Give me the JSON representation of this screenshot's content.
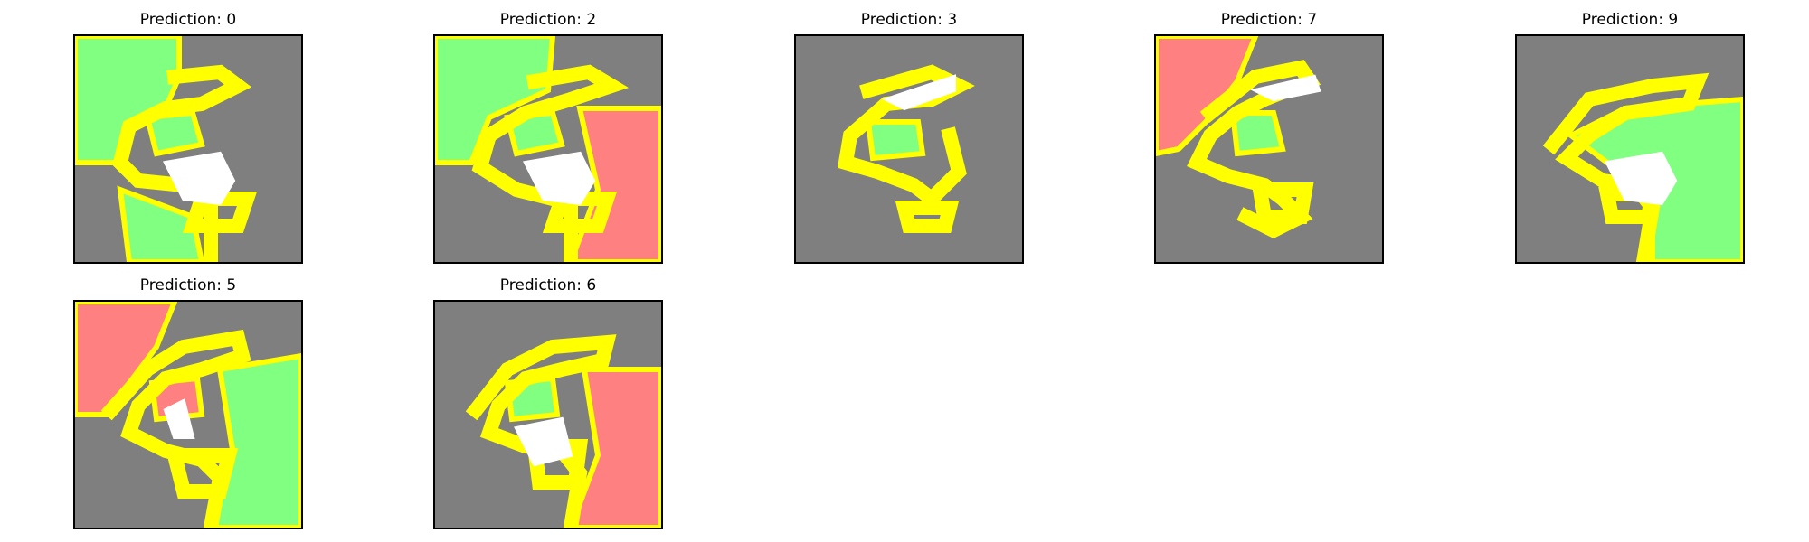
{
  "panels": [
    {
      "title": "Prediction: 0",
      "variant": "p0"
    },
    {
      "title": "Prediction: 2",
      "variant": "p2"
    },
    {
      "title": "Prediction: 3",
      "variant": "p3"
    },
    {
      "title": "Prediction: 7",
      "variant": "p7"
    },
    {
      "title": "Prediction: 9",
      "variant": "p9"
    },
    {
      "title": "Prediction: 5",
      "variant": "p5"
    },
    {
      "title": "Prediction: 6",
      "variant": "p6"
    }
  ],
  "colors": {
    "background": "#7f7f7f",
    "positive": "#80ff80",
    "negative": "#ff8080",
    "boundary": "#ffff00",
    "digit": "#ffffff"
  }
}
